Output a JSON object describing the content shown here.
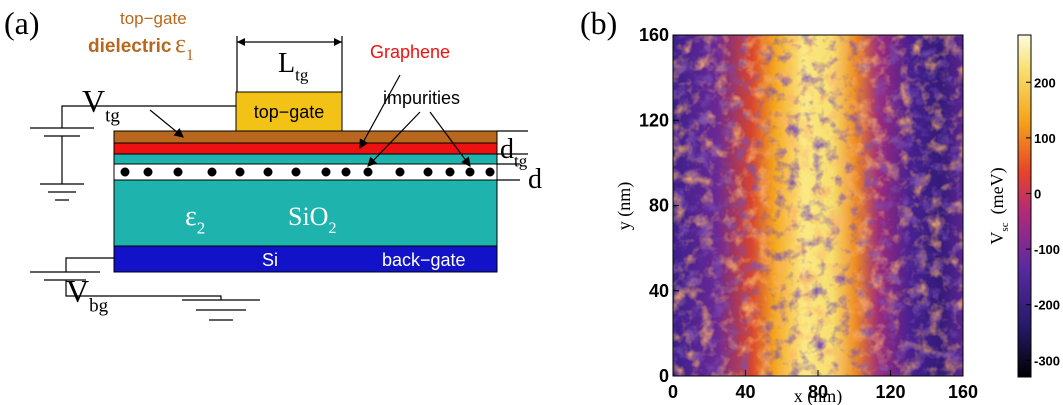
{
  "panel_a": {
    "label": "(a)",
    "dielectric_line1": "top−gate",
    "dielectric_line2": "dielectric",
    "epsilon_1": {
      "main": "ε",
      "sub": "1"
    },
    "length": {
      "main": "L",
      "sub": "tg"
    },
    "graphene": "Graphene",
    "top_gate": "top−gate",
    "impurities": "impurities",
    "v_tg": {
      "main": "V",
      "sub": "tg"
    },
    "d_tg": {
      "main": "d",
      "sub": "tg"
    },
    "d": "d",
    "epsilon_2": {
      "main": "ε",
      "sub": "2"
    },
    "sio2": {
      "main": "SiO",
      "sub": "2"
    },
    "si": "Si",
    "back_gate": "back−gate",
    "v_bg": {
      "main": "V",
      "sub": "bg"
    }
  },
  "panel_b": {
    "label": "(b)",
    "xlabel": "x (nm)",
    "ylabel": "y (nm)",
    "xlim": [
      0,
      160
    ],
    "ylim": [
      0,
      160
    ],
    "xticks": [
      0,
      40,
      80,
      120,
      160
    ],
    "yticks": [
      0,
      40,
      80,
      120,
      160
    ],
    "colorbar": {
      "label": {
        "main": "V",
        "sub": "sc",
        "unit": "(meV)"
      },
      "lim": [
        -330,
        285
      ],
      "ticks": [
        -300,
        -200,
        -100,
        0,
        100,
        200
      ]
    }
  }
}
